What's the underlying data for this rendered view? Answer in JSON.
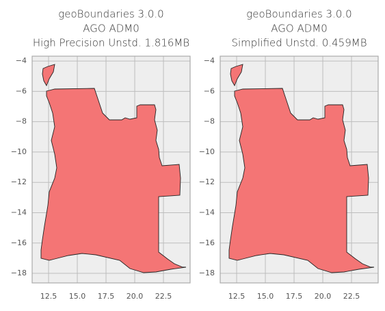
{
  "chart_data": [
    {
      "type": "map",
      "title": [
        "geoBoundaries 3.0.0",
        "AGO ADM0",
        "High Precision Unstd. 1.816MB"
      ],
      "xlim": [
        11.07,
        24.82
      ],
      "ylim": [
        -18.63,
        -3.68
      ],
      "xticks": [
        12.5,
        {
          "value": 15,
          "label": "15.0"
        },
        17.5,
        {
          "value": 20,
          "label": "20.0"
        },
        22.5
      ],
      "yticks": [
        {
          "value": -4,
          "label": "−4"
        },
        {
          "value": -6,
          "label": "−6"
        },
        {
          "value": -8,
          "label": "−8"
        },
        {
          "value": -10,
          "label": "−10"
        },
        {
          "value": -12,
          "label": "−12"
        },
        {
          "value": -14,
          "label": "−14"
        },
        {
          "value": -16,
          "label": "−16"
        },
        {
          "value": -18,
          "label": "−18"
        }
      ],
      "grid": true,
      "color": "#f47575"
    },
    {
      "type": "map",
      "title": [
        "geoBoundaries 3.0.0",
        "AGO ADM0",
        "Simplified Unstd. 0.459MB"
      ],
      "xlim": [
        11.07,
        24.82
      ],
      "ylim": [
        -18.63,
        -3.68
      ],
      "xticks": [
        12.5,
        {
          "value": 15,
          "label": "15.0"
        },
        17.5,
        {
          "value": 20,
          "label": "20.0"
        },
        22.5
      ],
      "yticks": [
        {
          "value": -4,
          "label": "−4"
        },
        {
          "value": -6,
          "label": "−6"
        },
        {
          "value": -8,
          "label": "−8"
        },
        {
          "value": -10,
          "label": "−10"
        },
        {
          "value": -12,
          "label": "−12"
        },
        {
          "value": -14,
          "label": "−14"
        },
        {
          "value": -16,
          "label": "−16"
        },
        {
          "value": -18,
          "label": "−18"
        }
      ],
      "grid": true,
      "color": "#f47575"
    }
  ]
}
